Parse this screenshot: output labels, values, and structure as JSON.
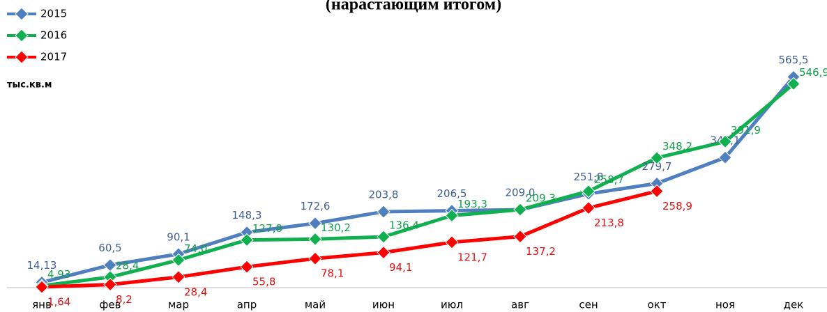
{
  "chart_data": {
    "type": "line",
    "title": "(нарастающим итогом)",
    "unit_label": "тыс.кв.м",
    "categories": [
      "янв",
      "фев",
      "мар",
      "апр",
      "май",
      "июн",
      "июл",
      "авг",
      "сен",
      "окт",
      "ноя",
      "дек"
    ],
    "ylim": [
      0,
      600
    ],
    "series": [
      {
        "name": "2015",
        "color": "#4f7fbf",
        "label_color": "#3f5f8f",
        "values": [
          14.13,
          60.5,
          90.1,
          148.3,
          172.6,
          203.8,
          206.5,
          209.0,
          251.8,
          279.7,
          349.1,
          565.5
        ],
        "value_labels": [
          "14,13",
          "60,5",
          "90,1",
          "148,3",
          "172,6",
          "203,8",
          "206,5",
          "209,0",
          "251,8",
          "279,7",
          "349,1",
          "565,5"
        ]
      },
      {
        "name": "2016",
        "color": "#10b050",
        "label_color": "#10a048",
        "values": [
          4.93,
          28.4,
          74.0,
          127.8,
          130.2,
          136.4,
          193.3,
          209.3,
          258.7,
          348.2,
          391.9,
          546.9
        ],
        "value_labels": [
          "4,93",
          "28,4",
          "74,0",
          "127,8",
          "130,2",
          "136,4",
          "193,3",
          "209,3",
          "258,7",
          "348,2",
          "391,9",
          "546,9"
        ]
      },
      {
        "name": "2017",
        "color": "#ff0000",
        "label_color": "#e01010",
        "values": [
          1.64,
          8.2,
          28.4,
          55.8,
          78.1,
          94.1,
          121.7,
          137.2,
          213.8,
          258.9,
          null,
          null
        ],
        "value_labels": [
          "1,64",
          "8,2",
          "28,4",
          "55,8",
          "78,1",
          "94,1",
          "121,7",
          "137,2",
          "213,8",
          "258,9",
          null,
          null
        ]
      }
    ]
  }
}
